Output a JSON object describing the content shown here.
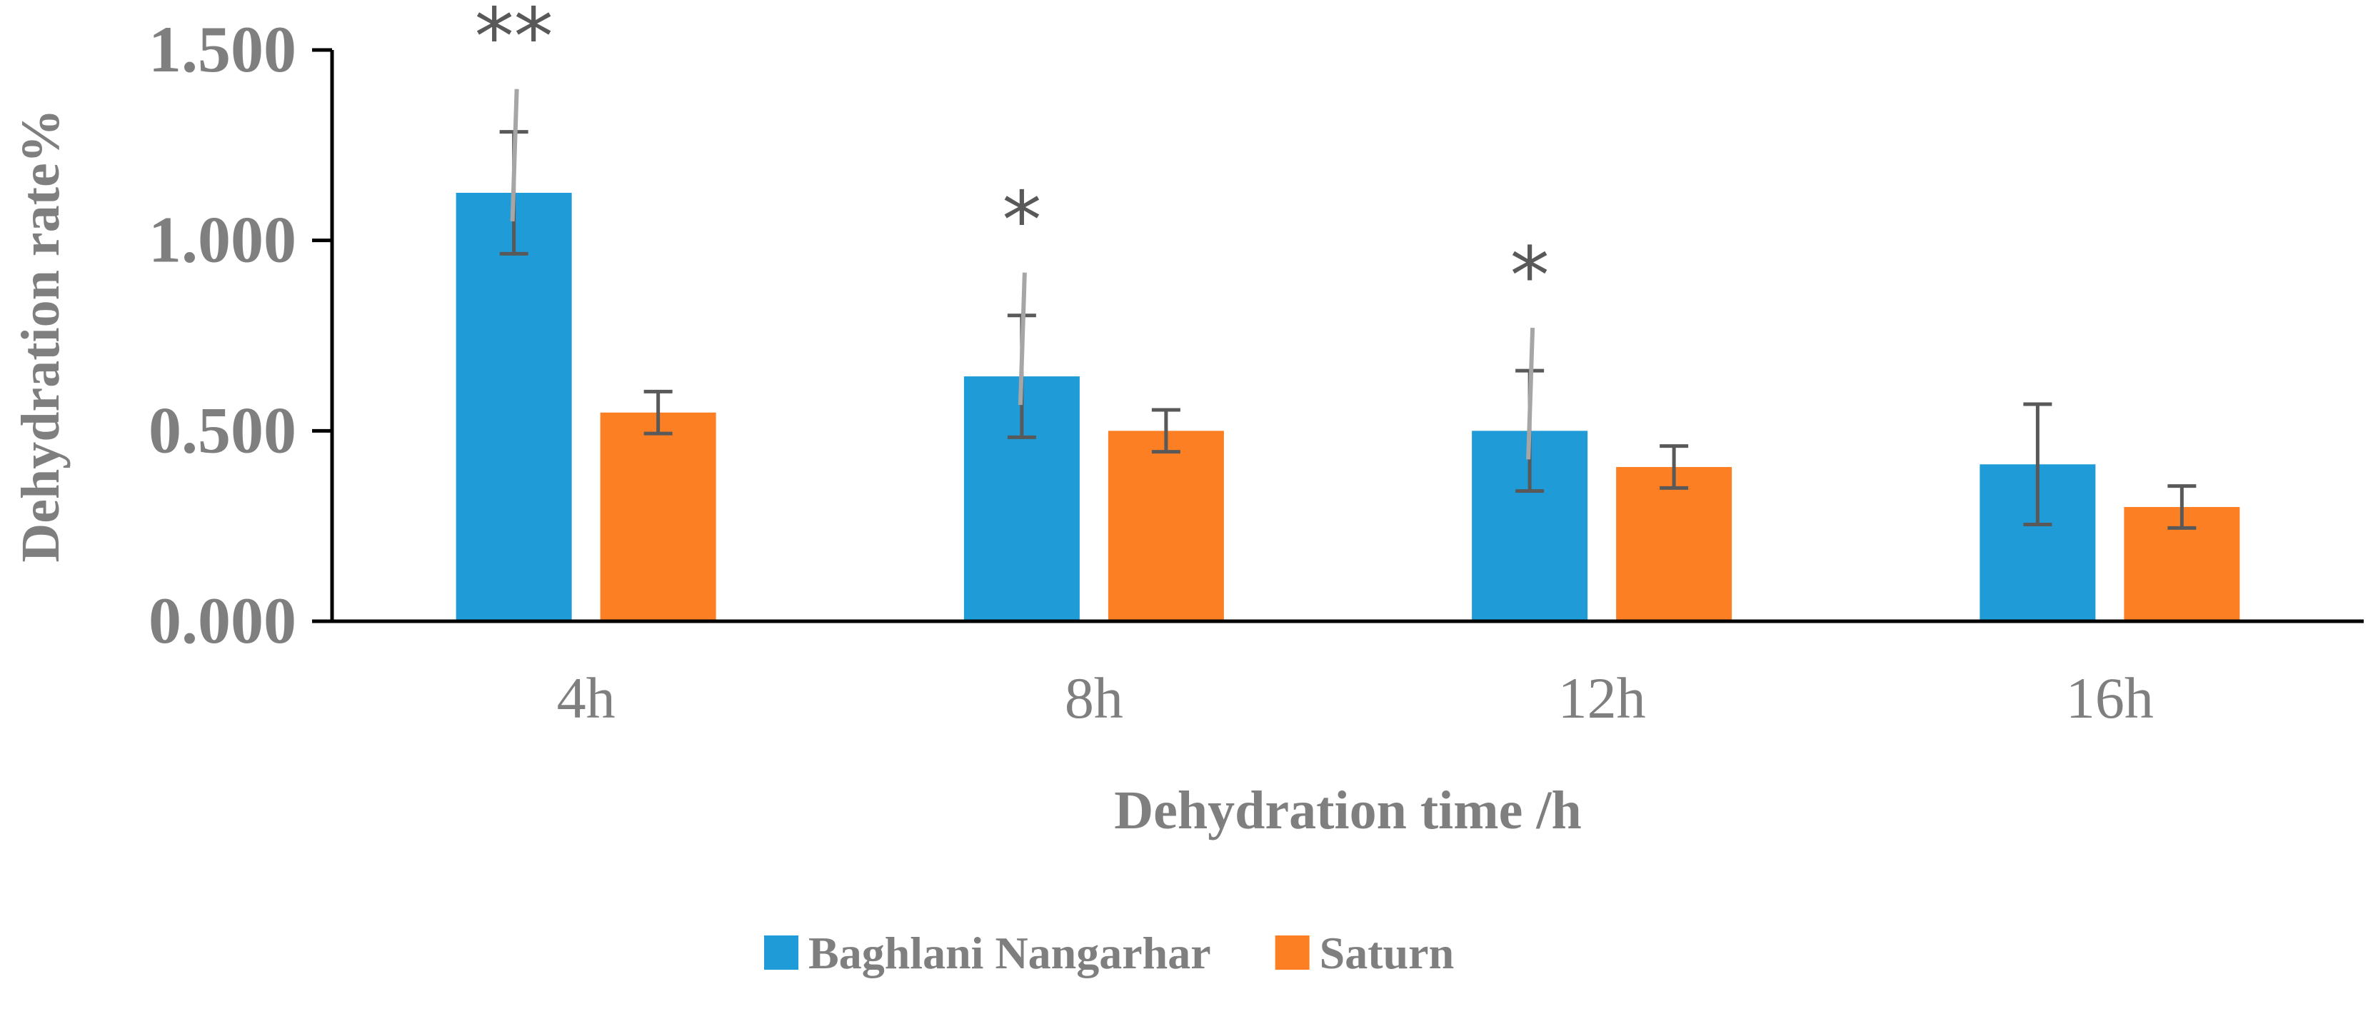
{
  "chart_data": {
    "type": "bar",
    "title": "",
    "xlabel": "Dehydration time /h",
    "ylabel": "Dehydration rate%",
    "categories": [
      "4h",
      "8h",
      "12h",
      "16h"
    ],
    "ylim": [
      0,
      1.5
    ],
    "yticks": [
      0,
      0.5,
      1.0,
      1.5
    ],
    "ytick_labels": [
      "0.000",
      "0.500",
      "1.000",
      "1.500"
    ],
    "grid": false,
    "legend_position": "bottom",
    "series": [
      {
        "name": "Baghlani Nangarhar",
        "color": "#1f9bd7",
        "values": [
          1.125,
          0.643,
          0.5,
          0.412
        ],
        "errors": [
          0.16,
          0.16,
          0.158,
          0.158
        ]
      },
      {
        "name": "Saturn",
        "color": "#fd7f23",
        "values": [
          0.548,
          0.5,
          0.405,
          0.3
        ],
        "errors": [
          0.055,
          0.055,
          0.055,
          0.055
        ]
      }
    ],
    "annotations": [
      {
        "category": "4h",
        "series": "Baghlani Nangarhar",
        "text": "**"
      },
      {
        "category": "8h",
        "series": "Baghlani Nangarhar",
        "text": "*"
      },
      {
        "category": "12h",
        "series": "Baghlani Nangarhar",
        "text": "*"
      }
    ]
  }
}
